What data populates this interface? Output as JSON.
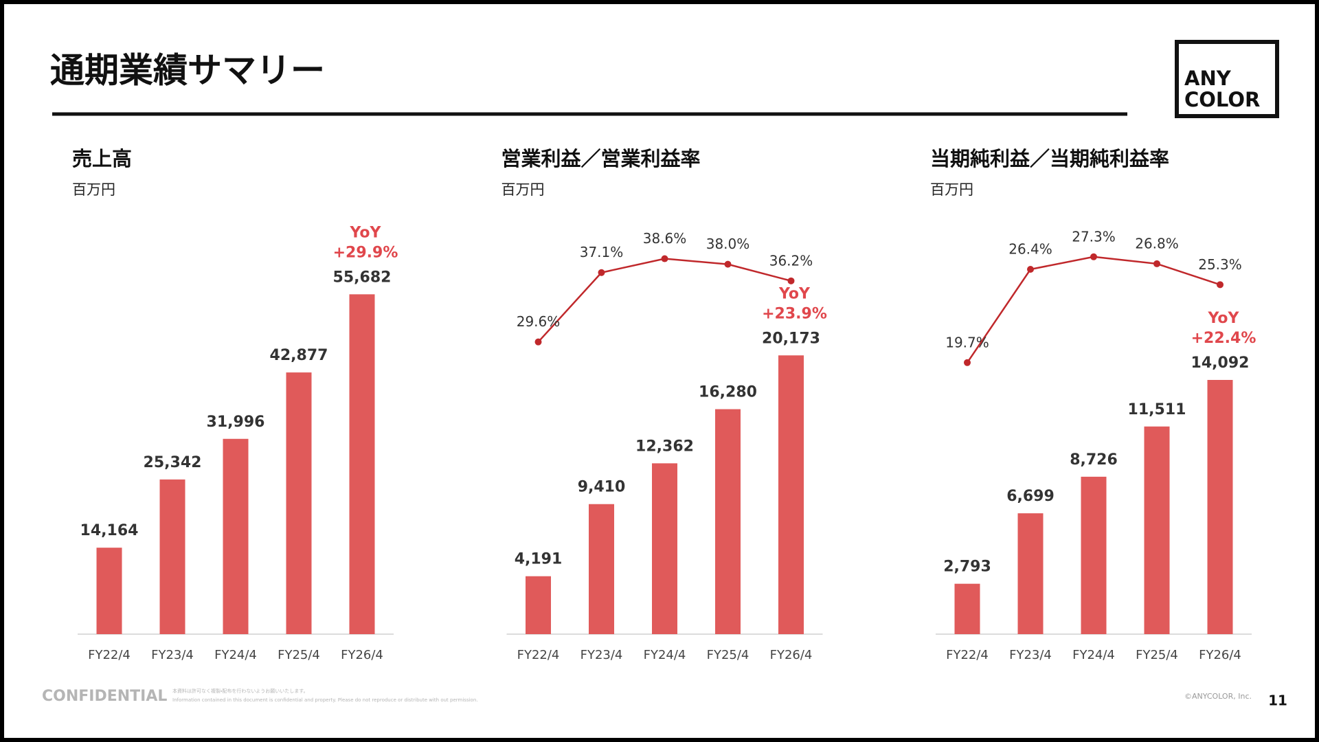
{
  "header": {
    "title": "通期業績サマリー",
    "logo": [
      "ANY",
      "COLOR"
    ]
  },
  "footer": {
    "confidential": "CONFIDENTIAL",
    "notes": [
      "本資料は許可なく複製・配布を行わないようお願いいたします。",
      "Information contained in this document is confidential and property. Please do not reproduce or distribute with out permission."
    ],
    "copyright": "©ANYCOLOR, Inc.",
    "page": "11"
  },
  "chart_data": [
    {
      "type": "bar",
      "title": "売上高",
      "subtitle": "百万円",
      "categories": [
        "FY22/4",
        "FY23/4",
        "FY24/4",
        "FY25/4",
        "FY26/4"
      ],
      "series": [
        {
          "color": "#e05a5a",
          "values": [
            14164,
            25342,
            31996,
            42877,
            55682
          ],
          "value_labels": [
            "14,164",
            "25,342",
            "31,996",
            "42,877",
            "55,682"
          ]
        }
      ],
      "ylim": [
        0,
        60000
      ],
      "annotation": {
        "label": "YoY",
        "text": "+29.9%",
        "color": "#e0474c"
      }
    },
    {
      "type": "combo",
      "title": "営業利益／営業利益率",
      "subtitle": "百万円",
      "categories": [
        "FY22/4",
        "FY23/4",
        "FY24/4",
        "FY25/4",
        "FY26/4"
      ],
      "series": [
        {
          "type": "bar",
          "color": "#e05a5a",
          "values": [
            4191,
            9410,
            12362,
            16280,
            20173
          ],
          "value_labels": [
            "4,191",
            "9,410",
            "12,362",
            "16,280",
            "20,173"
          ]
        },
        {
          "type": "line",
          "axis": "y2",
          "color": "#c0282b",
          "values": [
            29.6,
            37.1,
            38.6,
            38.0,
            36.2
          ],
          "value_labels": [
            "29.6%",
            "37.1%",
            "38.6%",
            "38.0%",
            "36.2%"
          ]
        }
      ],
      "ylim": [
        0,
        26500
      ],
      "y2lim": [
        -2,
        37.6
      ],
      "annotation": {
        "label": "YoY",
        "text": "+23.9%",
        "color": "#e0474c"
      }
    },
    {
      "type": "combo",
      "title": "当期純利益／当期純利益率",
      "subtitle": "百万円",
      "categories": [
        "FY22/4",
        "FY23/4",
        "FY24/4",
        "FY25/4",
        "FY26/4"
      ],
      "series": [
        {
          "type": "bar",
          "color": "#e05a5a",
          "values": [
            2793,
            6699,
            8726,
            11511,
            14092
          ],
          "value_labels": [
            "2,793",
            "6,699",
            "8,726",
            "11,511",
            "14,092"
          ]
        },
        {
          "type": "line",
          "axis": "y2",
          "color": "#c0282b",
          "values": [
            19.7,
            26.4,
            27.3,
            26.8,
            25.3
          ],
          "value_labels": [
            "19.7%",
            "26.4%",
            "27.3%",
            "26.8%",
            "25.3%"
          ]
        }
      ],
      "ylim": [
        0,
        20300
      ],
      "y2lim": [
        0.2,
        26.5
      ],
      "annotation": {
        "label": "YoY",
        "text": "+22.4%",
        "color": "#e0474c"
      }
    }
  ]
}
